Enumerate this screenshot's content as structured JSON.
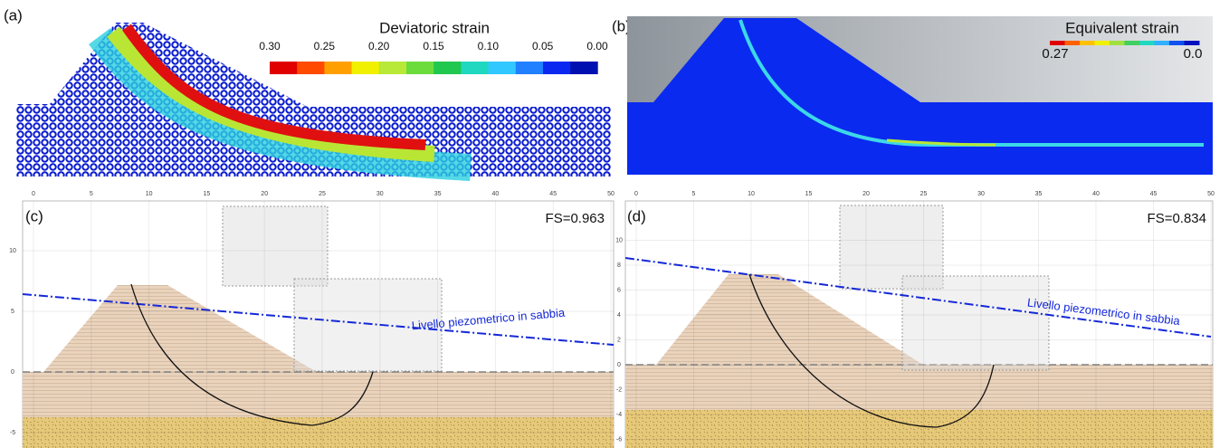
{
  "panels": [
    {
      "label": "(a)",
      "colorbar": {
        "title": "Deviatoric strain",
        "ticks": [
          "0.30",
          "0.25",
          "0.20",
          "0.15",
          "0.10",
          "0.05",
          "0.00"
        ]
      }
    },
    {
      "label": "(b)",
      "colorbar": {
        "title": "Equivalent strain",
        "ticks": [
          "0.27",
          "0.0"
        ]
      }
    },
    {
      "label": "(c)",
      "fs": "FS=0.963",
      "annotation": "Livello piezometrico in sabbia",
      "xticks": [
        0,
        5,
        10,
        15,
        20,
        25,
        30,
        35,
        40,
        45,
        50
      ],
      "yticks": [
        10,
        5,
        0,
        -5
      ]
    },
    {
      "label": "(d)",
      "fs": "FS=0.834",
      "annotation": "Livello piezometrico in sabbia",
      "xticks": [
        0,
        5,
        10,
        15,
        20,
        25,
        30,
        35,
        40,
        45,
        50
      ],
      "yticks": [
        10,
        8,
        6,
        4,
        2,
        0,
        -2,
        -4,
        -6
      ]
    }
  ]
}
